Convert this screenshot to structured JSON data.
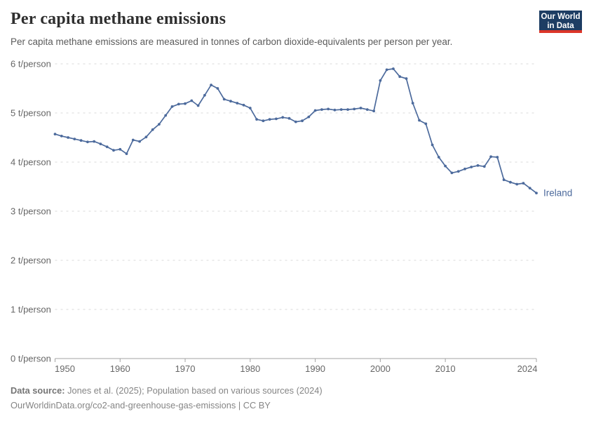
{
  "header": {
    "logo": {
      "line1": "Our World",
      "line2": "in Data",
      "bg_color": "#1d3d63",
      "accent_color": "#dc3629"
    }
  },
  "footer": {
    "data_source_label": "Data source:",
    "data_source_text": " Jones et al. (2025); Population based on various sources (2024)",
    "note_line": "OurWorldinData.org/co2-and-greenhouse-gas-emissions | CC BY"
  },
  "chart_data": {
    "type": "line",
    "title": "Per capita methane emissions",
    "subtitle": "Per capita methane emissions are measured in tonnes of carbon dioxide-equivalents per person per year.",
    "xlim": [
      1950,
      2024
    ],
    "ylim": [
      0,
      6.3
    ],
    "grid": "horizontal-dashed",
    "legend_position": "end-of-line-label",
    "grid_color": "#dadada",
    "axis_color": "#a3a3a3",
    "tick_label_color": "#666666",
    "x_ticks": [
      1950,
      1960,
      1970,
      1980,
      1990,
      2000,
      2010,
      2024
    ],
    "y_ticks": [
      0,
      1,
      2,
      3,
      4,
      5,
      6
    ],
    "y_tick_labels": [
      "0 t/person",
      "1 t/person",
      "2 t/person",
      "3 t/person",
      "4 t/person",
      "5 t/person",
      "6 t/person"
    ],
    "x": [
      1950,
      1951,
      1952,
      1953,
      1954,
      1955,
      1956,
      1957,
      1958,
      1959,
      1960,
      1961,
      1962,
      1963,
      1964,
      1965,
      1966,
      1967,
      1968,
      1969,
      1970,
      1971,
      1972,
      1973,
      1974,
      1975,
      1976,
      1977,
      1978,
      1979,
      1980,
      1981,
      1982,
      1983,
      1984,
      1985,
      1986,
      1987,
      1988,
      1989,
      1990,
      1991,
      1992,
      1993,
      1994,
      1995,
      1996,
      1997,
      1998,
      1999,
      2000,
      2001,
      2002,
      2003,
      2004,
      2005,
      2006,
      2007,
      2008,
      2009,
      2010,
      2011,
      2012,
      2013,
      2014,
      2015,
      2016,
      2017,
      2018,
      2019,
      2020,
      2021,
      2022,
      2023,
      2024
    ],
    "series": [
      {
        "name": "Ireland",
        "color": "#4C6A9C",
        "values": [
          4.57,
          4.53,
          4.5,
          4.47,
          4.44,
          4.41,
          4.42,
          4.37,
          4.31,
          4.24,
          4.26,
          4.17,
          4.45,
          4.42,
          4.51,
          4.66,
          4.77,
          4.95,
          5.13,
          5.18,
          5.19,
          5.25,
          5.15,
          5.36,
          5.57,
          5.5,
          5.28,
          5.24,
          5.2,
          5.16,
          5.1,
          4.87,
          4.84,
          4.87,
          4.88,
          4.91,
          4.89,
          4.82,
          4.84,
          4.92,
          5.05,
          5.07,
          5.08,
          5.06,
          5.07,
          5.07,
          5.08,
          5.1,
          5.07,
          5.04,
          5.66,
          5.88,
          5.9,
          5.74,
          5.7,
          5.2,
          4.85,
          4.78,
          4.35,
          4.1,
          3.92,
          3.78,
          3.81,
          3.86,
          3.9,
          3.93,
          3.91,
          4.11,
          4.1,
          3.64,
          3.59,
          3.55,
          3.57,
          3.47,
          3.37
        ]
      }
    ]
  }
}
